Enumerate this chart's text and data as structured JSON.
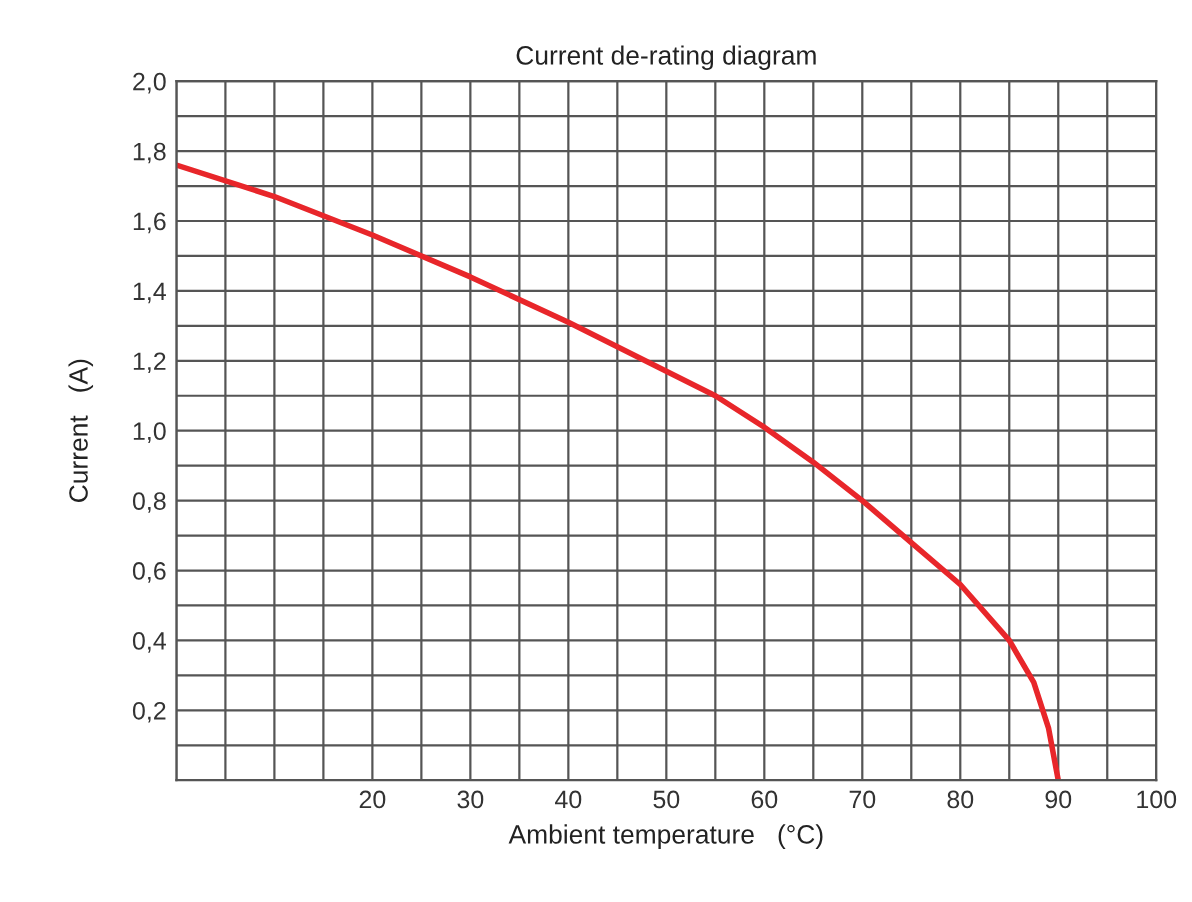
{
  "chart_data": {
    "type": "line",
    "title": "Current de-rating diagram",
    "xlabel": "Ambient temperature   (°C)",
    "ylabel": "Current   (A)",
    "x": [
      0,
      10,
      20,
      30,
      40,
      50,
      55,
      60,
      65,
      70,
      75,
      80,
      85,
      87.5,
      89,
      90
    ],
    "series": [
      {
        "color": "#e8262a",
        "values": [
          1.76,
          1.67,
          1.56,
          1.44,
          1.31,
          1.17,
          1.1,
          1.01,
          0.91,
          0.8,
          0.68,
          0.56,
          0.4,
          0.28,
          0.15,
          0.0
        ]
      }
    ],
    "xlim": [
      0,
      100
    ],
    "ylim": [
      0,
      2.0
    ],
    "xticks": [
      {
        "value": 0,
        "label": null
      },
      {
        "value": 5,
        "label": null
      },
      {
        "value": 10,
        "label": null
      },
      {
        "value": 15,
        "label": null
      },
      20,
      {
        "value": 25,
        "label": null
      },
      30,
      {
        "value": 35,
        "label": null
      },
      40,
      {
        "value": 45,
        "label": null
      },
      50,
      {
        "value": 55,
        "label": null
      },
      60,
      {
        "value": 65,
        "label": null
      },
      70,
      {
        "value": 75,
        "label": null
      },
      80,
      {
        "value": 85,
        "label": null
      },
      90,
      {
        "value": 95,
        "label": null
      },
      100
    ],
    "yticks": [
      {
        "value": 0.0,
        "label": null
      },
      {
        "value": 0.1,
        "label": null
      },
      {
        "value": 0.2,
        "label": "0,2"
      },
      {
        "value": 0.3,
        "label": null
      },
      {
        "value": 0.4,
        "label": "0,4"
      },
      {
        "value": 0.5,
        "label": null
      },
      {
        "value": 0.6,
        "label": "0,6"
      },
      {
        "value": 0.7,
        "label": null
      },
      {
        "value": 0.8,
        "label": "0,8"
      },
      {
        "value": 0.9,
        "label": null
      },
      {
        "value": 1.0,
        "label": "1,0"
      },
      {
        "value": 1.1,
        "label": null
      },
      {
        "value": 1.2,
        "label": "1,2"
      },
      {
        "value": 1.3,
        "label": null
      },
      {
        "value": 1.4,
        "label": "1,4"
      },
      {
        "value": 1.5,
        "label": null
      },
      {
        "value": 1.6,
        "label": "1,6"
      },
      {
        "value": 1.7,
        "label": null
      },
      {
        "value": 1.8,
        "label": "1,8"
      },
      {
        "value": 1.9,
        "label": null
      },
      {
        "value": 2.0,
        "label": "2,0"
      }
    ],
    "grid": true,
    "line_style": "solid"
  }
}
